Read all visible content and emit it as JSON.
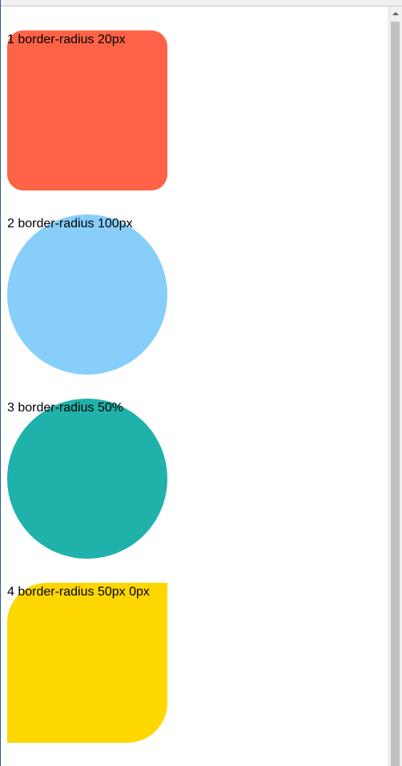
{
  "boxes": [
    {
      "label": "1 border-radius 20px",
      "color": "#FF6347"
    },
    {
      "label": "2 border-radius 100px",
      "color": "#87CEFA"
    },
    {
      "label": "3 border-radius 50%",
      "color": "#20B2AA"
    },
    {
      "label": "4 border-radius 50px 0px",
      "color": "#FFD700"
    }
  ],
  "icons": {
    "scroll_up": "chevron-up-icon"
  }
}
